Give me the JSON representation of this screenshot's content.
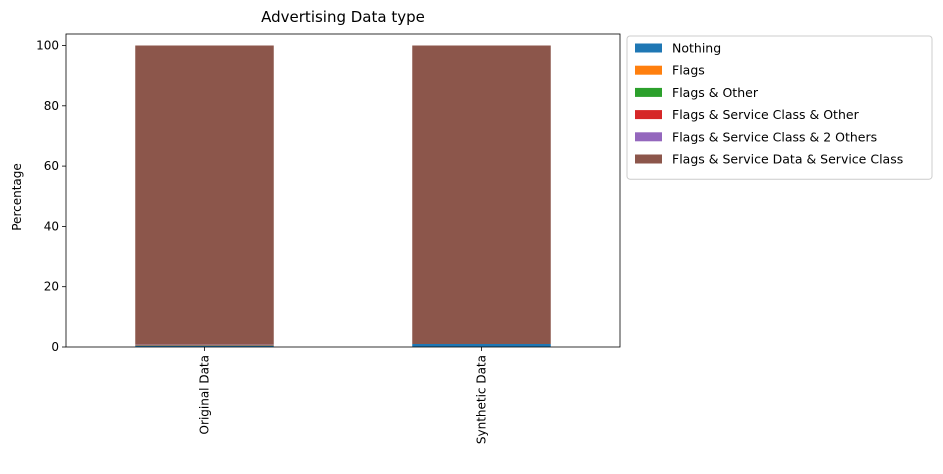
{
  "chart_data": {
    "type": "bar",
    "stacked": true,
    "title": "Advertising Data type",
    "xlabel": "",
    "ylabel": "Percentage",
    "categories": [
      "Original Data",
      "Synthetic Data"
    ],
    "ylim": [
      0,
      100
    ],
    "yticks": [
      0,
      20,
      40,
      60,
      80,
      100
    ],
    "legend_position": "outside-right",
    "grid": false,
    "series": [
      {
        "name": "Nothing",
        "color": "#1f77b4",
        "values": [
          0.5,
          1.0
        ]
      },
      {
        "name": "Flags",
        "color": "#ff7f0e",
        "values": [
          0.2,
          0.0
        ]
      },
      {
        "name": "Flags & Other",
        "color": "#2ca02c",
        "values": [
          0.0,
          0.0
        ]
      },
      {
        "name": "Flags & Service Class & Other",
        "color": "#d62728",
        "values": [
          0.0,
          0.0
        ]
      },
      {
        "name": "Flags & Service Class & 2 Others",
        "color": "#9467bd",
        "values": [
          0.1,
          0.0
        ]
      },
      {
        "name": "Flags & Service Data & Service Class",
        "color": "#8c564b",
        "values": [
          99.2,
          99.0
        ]
      }
    ]
  }
}
